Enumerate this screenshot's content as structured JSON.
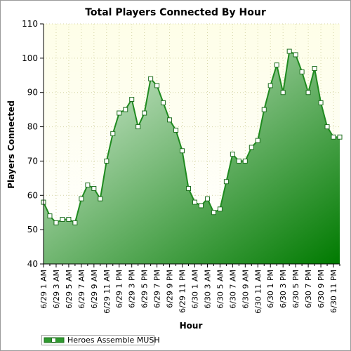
{
  "chart_data": {
    "type": "area",
    "title": "Total Players Connected By Hour",
    "xlabel": "Hour",
    "ylabel": "Players Connected",
    "ylim": [
      40,
      110
    ],
    "yticks": [
      40,
      50,
      60,
      70,
      80,
      90,
      100,
      110
    ],
    "grid": true,
    "legend_position": "bottom-left",
    "categories": [
      "6/29 1 AM",
      "6/29 2 AM",
      "6/29 3 AM",
      "6/29 4 AM",
      "6/29 5 AM",
      "6/29 6 AM",
      "6/29 7 AM",
      "6/29 8 AM",
      "6/29 9 AM",
      "6/29 10 AM",
      "6/29 11 AM",
      "6/29 12 PM",
      "6/29 1 PM",
      "6/29 2 PM",
      "6/29 3 PM",
      "6/29 4 PM",
      "6/29 5 PM",
      "6/29 6 PM",
      "6/29 7 PM",
      "6/29 8 PM",
      "6/29 9 PM",
      "6/29 10 PM",
      "6/29 11 PM",
      "6/30 12 AM",
      "6/30 1 AM",
      "6/30 2 AM",
      "6/30 3 AM",
      "6/30 4 AM",
      "6/30 5 AM",
      "6/30 6 AM",
      "6/30 7 AM",
      "6/30 8 AM",
      "6/30 9 AM",
      "6/30 10 AM",
      "6/30 11 AM",
      "6/30 12 PM",
      "6/30 1 PM",
      "6/30 2 PM",
      "6/30 3 PM",
      "6/30 4 PM",
      "6/30 5 PM",
      "6/30 6 PM",
      "6/30 7 PM",
      "6/30 8 PM",
      "6/30 9 PM",
      "6/30 10 PM",
      "6/30 11 PM",
      "6/30 12 AM"
    ],
    "tick_labels": [
      "6/29 1 AM",
      "6/29 3 AM",
      "6/29 5 AM",
      "6/29 7 AM",
      "6/29 9 AM",
      "6/29 11 AM",
      "6/29 1 PM",
      "6/29 3 PM",
      "6/29 5 PM",
      "6/29 7 PM",
      "6/29 9 PM",
      "6/29 11 PM",
      "6/30 1 AM",
      "6/30 3 AM",
      "6/30 5 AM",
      "6/30 7 AM",
      "6/30 9 AM",
      "6/30 11 AM",
      "6/30 1 PM",
      "6/30 3 PM",
      "6/30 5 PM",
      "6/30 7 PM",
      "6/30 9 PM",
      "6/30 11 PM"
    ],
    "series": [
      {
        "name": "Heroes Assemble MUSH",
        "color": "#1f8a1f",
        "values": [
          58,
          54,
          52,
          53,
          53,
          52,
          59,
          63,
          62,
          59,
          70,
          78,
          84,
          85,
          88,
          80,
          84,
          94,
          92,
          87,
          82,
          79,
          73,
          62,
          58,
          57,
          59,
          55,
          56,
          64,
          72,
          70,
          70,
          74,
          76,
          85,
          92,
          98,
          90,
          102,
          101,
          96,
          90,
          97,
          87,
          80,
          77,
          77
        ]
      }
    ]
  },
  "colors": {
    "plot_bg_top": "#fefee8",
    "plot_bg_bottom": "#ffffff",
    "area_light": "#dceedc",
    "area_dark": "#007a00",
    "line": "#1f8a1f",
    "grid": "#d4d4a4"
  }
}
